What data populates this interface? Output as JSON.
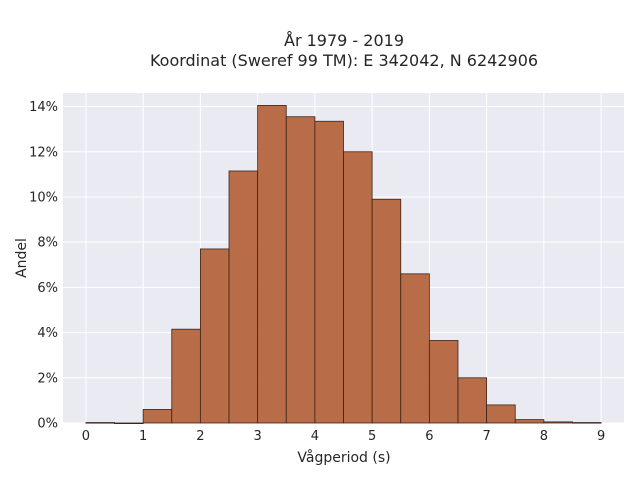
{
  "chart_data": {
    "type": "bar",
    "title_line1": "År 1979 - 2019",
    "title_line2": "Koordinat (Sweref 99 TM): E 342042, N 6242906",
    "xlabel": "Vågperiod (s)",
    "ylabel": "Andel",
    "x_ticks": [
      "0",
      "1",
      "2",
      "3",
      "4",
      "5",
      "6",
      "7",
      "8",
      "9"
    ],
    "y_ticks": [
      "0%",
      "2%",
      "4%",
      "6%",
      "8%",
      "10%",
      "12%",
      "14%"
    ],
    "xlim": [
      -0.4,
      9.4
    ],
    "ylim": [
      0,
      14.6
    ],
    "bin_width": 0.5,
    "bins": [
      0.0,
      0.5,
      1.0,
      1.5,
      2.0,
      2.5,
      3.0,
      3.5,
      4.0,
      4.5,
      5.0,
      5.5,
      6.0,
      6.5,
      7.0,
      7.5,
      8.0,
      8.5
    ],
    "values": [
      0.02,
      0.0,
      0.6,
      4.15,
      7.7,
      11.15,
      14.05,
      13.55,
      13.35,
      12.0,
      9.9,
      6.6,
      3.65,
      2.0,
      0.8,
      0.15,
      0.05,
      0.02
    ],
    "unit": "%",
    "grid": true,
    "legend": "none",
    "colors": {
      "bar_fill": "#b5653e",
      "bar_edge": "#3a2418",
      "plot_background": "#eaeaf2",
      "grid": "#ffffff"
    }
  }
}
